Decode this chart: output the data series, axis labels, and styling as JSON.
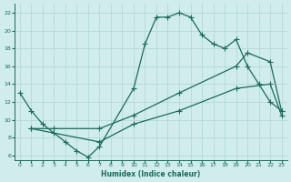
{
  "xlabel": "Humidex (Indice chaleur)",
  "background_color": "#d0ecec",
  "grid_color": "#b0d4d4",
  "line_color": "#1a6b5a",
  "xlim": [
    -0.5,
    23.5
  ],
  "ylim": [
    5.5,
    23
  ],
  "xticks": [
    0,
    1,
    2,
    3,
    4,
    5,
    6,
    7,
    8,
    9,
    10,
    11,
    12,
    13,
    14,
    15,
    16,
    17,
    18,
    19,
    20,
    21,
    22,
    23
  ],
  "yticks": [
    6,
    8,
    10,
    12,
    14,
    16,
    18,
    20,
    22
  ],
  "line1_x": [
    0,
    1,
    2,
    4,
    5,
    6,
    7,
    10,
    11,
    12,
    13,
    14,
    15,
    16,
    17,
    18,
    19,
    20,
    21,
    22,
    23
  ],
  "line1_y": [
    13,
    11,
    9.5,
    7.5,
    6.5,
    5.8,
    7,
    13.5,
    18.5,
    21.5,
    21.5,
    22,
    21.5,
    19.5,
    18.5,
    18,
    19,
    16,
    14,
    12,
    11
  ],
  "line2_x": [
    1,
    3,
    7,
    10,
    14,
    19,
    20,
    22,
    23
  ],
  "line2_y": [
    9,
    9,
    9,
    10.5,
    13,
    16,
    17.5,
    16.5,
    11
  ],
  "line3_x": [
    1,
    3,
    7,
    10,
    14,
    19,
    22,
    23
  ],
  "line3_y": [
    9,
    8.5,
    7.5,
    9.5,
    11,
    13.5,
    14,
    10.5
  ]
}
